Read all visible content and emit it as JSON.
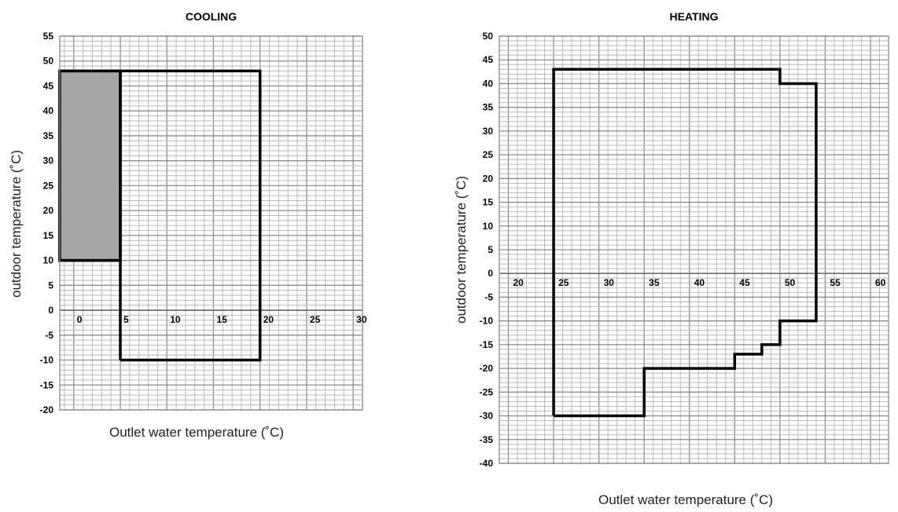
{
  "colors": {
    "grid_minor": "#b9b9b9",
    "grid_major": "#8c8c8c",
    "envelope": "#000000",
    "shaded_region": "#a6a6a6"
  },
  "chart_data": [
    {
      "type": "line",
      "title": "COOLING",
      "xlabel": "Outlet water  temperature (˚C)",
      "ylabel": "outdoor temperature (˚C)",
      "xlim": [
        -1.5,
        31
      ],
      "ylim": [
        -20,
        55
      ],
      "x_ticks": [
        0,
        5,
        10,
        15,
        20,
        25,
        30
      ],
      "y_ticks": [
        55,
        50,
        45,
        40,
        35,
        30,
        25,
        20,
        15,
        10,
        5,
        0,
        -5,
        -10,
        -15,
        -20
      ],
      "grid": true,
      "series": [
        {
          "x": [
            5,
            5,
            20,
            20,
            5
          ],
          "y": [
            -10,
            48,
            48,
            -10,
            -10
          ]
        }
      ],
      "shaded_regions": [
        {
          "x": [
            -1.5,
            5
          ],
          "y": [
            10,
            48
          ]
        }
      ]
    },
    {
      "type": "line",
      "title": "HEATING",
      "xlabel": "Outlet water  temperature (˚C)",
      "ylabel": "outdoor temperature (˚C)",
      "xlim": [
        19,
        62
      ],
      "ylim": [
        -40,
        50
      ],
      "x_ticks": [
        20,
        25,
        30,
        35,
        40,
        45,
        50,
        55,
        60
      ],
      "y_ticks": [
        50,
        45,
        40,
        35,
        30,
        25,
        20,
        15,
        10,
        5,
        0,
        -5,
        -10,
        -15,
        -20,
        -25,
        -30,
        -35,
        -40
      ],
      "grid": true,
      "series": [
        {
          "x": [
            25,
            25,
            50,
            50,
            54,
            54,
            50,
            50,
            48,
            48,
            45,
            45,
            35,
            35,
            25
          ],
          "y": [
            -30,
            43,
            43,
            40,
            40,
            -10,
            -10,
            -15,
            -15,
            -17,
            -17,
            -20,
            -20,
            -30,
            -30
          ]
        }
      ]
    }
  ]
}
